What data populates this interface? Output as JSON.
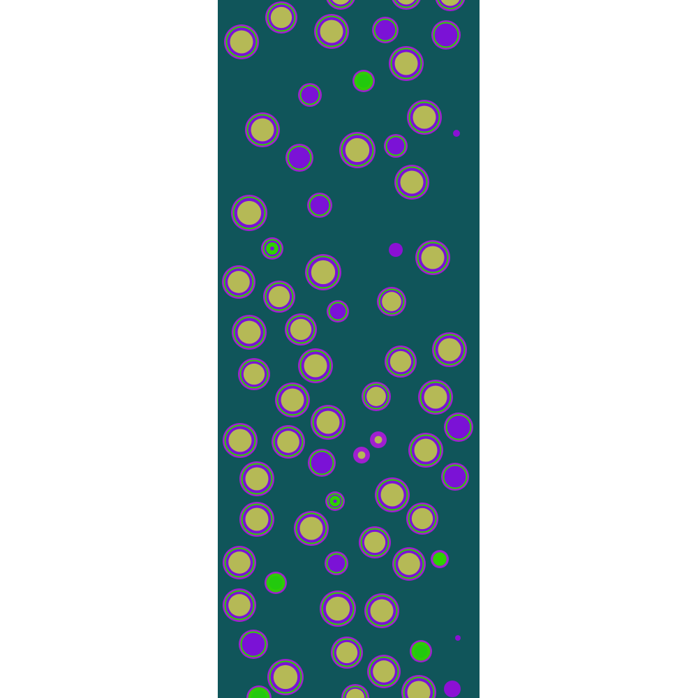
{
  "image": {
    "background": "#ffffff",
    "panel_color": "#10555a",
    "palette": {
      "rim": "#a01fd0",
      "ring": "#2ed000",
      "body": "#7b12d6",
      "core": "#b5b956",
      "dot_purple": "#8b10d4",
      "dot_green": "#22c90d"
    }
  }
}
